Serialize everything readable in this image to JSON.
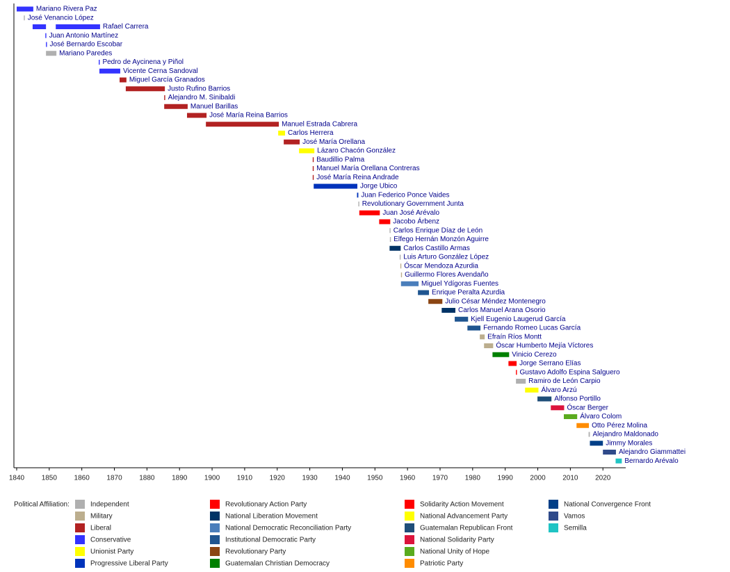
{
  "chart_data": {
    "type": "timeline",
    "xlim": [
      1839.15,
      2027
    ],
    "xticks": [
      1840,
      1850,
      1860,
      1870,
      1880,
      1890,
      1900,
      1910,
      1920,
      1930,
      1940,
      1950,
      1960,
      1970,
      1980,
      1990,
      2000,
      2010,
      2020
    ],
    "legend_title": "Political Affiliation:",
    "parties": [
      {
        "name": "Independent",
        "color": "#b0b0b0"
      },
      {
        "name": "Military",
        "color": "#bcae8e"
      },
      {
        "name": "Liberal",
        "color": "#b22222"
      },
      {
        "name": "Conservative",
        "color": "#3333ff"
      },
      {
        "name": "Unionist Party",
        "color": "#ffff00"
      },
      {
        "name": "Progressive Liberal Party",
        "color": "#0033bb"
      },
      {
        "name": "Revolutionary Action Party",
        "color": "#ff0000"
      },
      {
        "name": "National Liberation Movement",
        "color": "#003366"
      },
      {
        "name": "National Democratic Reconciliation Party",
        "color": "#4a7ebb"
      },
      {
        "name": "Institutional Democratic Party",
        "color": "#1f5590"
      },
      {
        "name": "Revolutionary Party",
        "color": "#8b4513"
      },
      {
        "name": "Guatemalan Christian Democracy",
        "color": "#008000"
      },
      {
        "name": "Solidarity Action Movement",
        "color": "#ff0000"
      },
      {
        "name": "National Advancement Party",
        "color": "#ffff00"
      },
      {
        "name": "Guatemalan Republican Front",
        "color": "#1f4e79"
      },
      {
        "name": "National Solidarity Party",
        "color": "#dc143c"
      },
      {
        "name": "National Unity of Hope",
        "color": "#5aab1e"
      },
      {
        "name": "Patriotic Party",
        "color": "#ff8c00"
      },
      {
        "name": "National Convergence Front",
        "color": "#003f87"
      },
      {
        "name": "Vamos",
        "color": "#2f4a8a"
      },
      {
        "name": "Semilla",
        "color": "#20c4c4"
      }
    ],
    "rows": [
      {
        "name": "Mariano Rivera Paz",
        "color": "#3333ff",
        "spans": [
          [
            1840,
            1845.1
          ]
        ]
      },
      {
        "name": "José Venancio López",
        "color": "#b0b0b0",
        "spans": [
          [
            1842.2,
            1842.5
          ]
        ]
      },
      {
        "name": "Rafael Carrera",
        "color": "#3333ff",
        "spans": [
          [
            1844.9,
            1849
          ],
          [
            1852,
            1865.6
          ]
        ]
      },
      {
        "name": "Juan Antonio Martínez",
        "color": "#3333ff",
        "spans": [
          [
            1848.8,
            1849.1
          ]
        ]
      },
      {
        "name": "José Bernardo Escobar",
        "color": "#3333ff",
        "spans": [
          [
            1849,
            1849.3
          ]
        ]
      },
      {
        "name": "Mariano Paredes",
        "color": "#b0b0b0",
        "spans": [
          [
            1849,
            1852.2
          ]
        ]
      },
      {
        "name": "Pedro de Aycinena y Piñol",
        "color": "#3333ff",
        "spans": [
          [
            1865.2,
            1865.5
          ]
        ]
      },
      {
        "name": "Vicente Cerna Sandoval",
        "color": "#3333ff",
        "spans": [
          [
            1865.4,
            1871.8
          ]
        ]
      },
      {
        "name": "Miguel García Granados",
        "color": "#b22222",
        "spans": [
          [
            1871.6,
            1873.7
          ]
        ]
      },
      {
        "name": "Justo Rufino Barrios",
        "color": "#b22222",
        "spans": [
          [
            1873.5,
            1885.5
          ]
        ]
      },
      {
        "name": "Alejandro M. Sinibaldi",
        "color": "#b22222",
        "spans": [
          [
            1885.3,
            1885.6
          ]
        ]
      },
      {
        "name": "Manuel Barillas",
        "color": "#b22222",
        "spans": [
          [
            1885.3,
            1892.5
          ]
        ]
      },
      {
        "name": "José María Reina Barrios",
        "color": "#b22222",
        "spans": [
          [
            1892.3,
            1898.3
          ]
        ]
      },
      {
        "name": "Manuel Estrada Cabrera",
        "color": "#b22222",
        "spans": [
          [
            1898.1,
            1920.5
          ]
        ]
      },
      {
        "name": "Carlos Herrera",
        "color": "#ffff00",
        "spans": [
          [
            1920.3,
            1922.4
          ]
        ]
      },
      {
        "name": "José María Orellana",
        "color": "#b22222",
        "spans": [
          [
            1922,
            1926.9
          ]
        ]
      },
      {
        "name": "Lázaro Chacón González",
        "color": "#ffff00",
        "spans": [
          [
            1926.7,
            1931.4
          ]
        ]
      },
      {
        "name": "Baudillio Palma",
        "color": "#b22222",
        "spans": [
          [
            1930.9,
            1931.2
          ]
        ]
      },
      {
        "name": "Manuel María Orellana Contreras",
        "color": "#b22222",
        "spans": [
          [
            1930.9,
            1931.2
          ]
        ]
      },
      {
        "name": "José María Reina Andrade",
        "color": "#b22222",
        "spans": [
          [
            1930.9,
            1931.2
          ]
        ]
      },
      {
        "name": "Jorge Ubico",
        "color": "#0033bb",
        "spans": [
          [
            1931.2,
            1944.6
          ]
        ]
      },
      {
        "name": "Juan Federico Ponce Vaides",
        "color": "#0033bb",
        "spans": [
          [
            1944.5,
            1944.9
          ]
        ]
      },
      {
        "name": "Revolutionary Government Junta",
        "color": "#b0b0b0",
        "spans": [
          [
            1944.9,
            1945.2
          ]
        ]
      },
      {
        "name": "Juan José Arévalo",
        "color": "#ff0000",
        "spans": [
          [
            1945.2,
            1951.5
          ]
        ]
      },
      {
        "name": "Jacobo Árbenz",
        "color": "#ff0000",
        "spans": [
          [
            1951.3,
            1954.7
          ]
        ]
      },
      {
        "name": "Carlos Enrique Díaz de León",
        "color": "#b0b0b0",
        "spans": [
          [
            1954.5,
            1954.8
          ]
        ]
      },
      {
        "name": "Elfego Hernán Monzón Aguirre",
        "color": "#b0b0b0",
        "spans": [
          [
            1954.6,
            1954.9
          ]
        ]
      },
      {
        "name": "Carlos Castillo Armas",
        "color": "#003366",
        "spans": [
          [
            1954.5,
            1957.9
          ]
        ]
      },
      {
        "name": "Luis Arturo González López",
        "color": "#b0b0b0",
        "spans": [
          [
            1957.6,
            1957.9
          ]
        ]
      },
      {
        "name": "Óscar Mendoza Azurdia",
        "color": "#bcae8e",
        "spans": [
          [
            1957.8,
            1958.1
          ]
        ]
      },
      {
        "name": "Guillermo Flores Avendaño",
        "color": "#bcae8e",
        "spans": [
          [
            1958,
            1958.3
          ]
        ]
      },
      {
        "name": "Miguel Ydígoras Fuentes",
        "color": "#4a7ebb",
        "spans": [
          [
            1958,
            1963.4
          ]
        ]
      },
      {
        "name": "Enrique Peralta Azurdia",
        "color": "#1f5590",
        "spans": [
          [
            1963.2,
            1966.6
          ]
        ]
      },
      {
        "name": "Julio César Méndez Montenegro",
        "color": "#8b4513",
        "spans": [
          [
            1966.4,
            1970.7
          ]
        ]
      },
      {
        "name": "Carlos Manuel Arana Osorio",
        "color": "#003366",
        "spans": [
          [
            1970.5,
            1974.7
          ]
        ]
      },
      {
        "name": "Kjell Eugenio Laugerud García",
        "color": "#1f5590",
        "spans": [
          [
            1974.5,
            1978.6
          ]
        ]
      },
      {
        "name": "Fernando Romeo Lucas García",
        "color": "#1f5590",
        "spans": [
          [
            1978.4,
            1982.4
          ]
        ]
      },
      {
        "name": "Efraín Ríos Montt",
        "color": "#bcae8e",
        "spans": [
          [
            1982.2,
            1983.7
          ]
        ]
      },
      {
        "name": "Óscar Humberto Mejía Víctores",
        "color": "#bcae8e",
        "spans": [
          [
            1983.5,
            1986.3
          ]
        ]
      },
      {
        "name": "Vinicio Cerezo",
        "color": "#008000",
        "spans": [
          [
            1986.1,
            1991.2
          ]
        ]
      },
      {
        "name": "Jorge Serrano Elías",
        "color": "#ff0000",
        "spans": [
          [
            1991,
            1993.5
          ]
        ]
      },
      {
        "name": "Gustavo Adolfo Espina Salguero",
        "color": "#ff0000",
        "spans": [
          [
            1993.3,
            1993.6
          ]
        ]
      },
      {
        "name": "Ramiro de León Carpio",
        "color": "#b0b0b0",
        "spans": [
          [
            1993.3,
            1996.3
          ]
        ]
      },
      {
        "name": "Álvaro Arzú",
        "color": "#ffff00",
        "spans": [
          [
            1996.1,
            2000.2
          ]
        ]
      },
      {
        "name": "Alfonso Portillo",
        "color": "#1f4e79",
        "spans": [
          [
            1999.9,
            2004.2
          ]
        ]
      },
      {
        "name": "Óscar Berger",
        "color": "#dc143c",
        "spans": [
          [
            2004,
            2008.1
          ]
        ]
      },
      {
        "name": "Álvaro Colom",
        "color": "#5aab1e",
        "spans": [
          [
            2008,
            2012.1
          ]
        ]
      },
      {
        "name": "Otto Pérez Molina",
        "color": "#ff8c00",
        "spans": [
          [
            2011.9,
            2015.7
          ]
        ]
      },
      {
        "name": "Alejandro Maldonado",
        "color": "#b0b0b0",
        "spans": [
          [
            2015.6,
            2016
          ]
        ]
      },
      {
        "name": "Jimmy Morales",
        "color": "#003f87",
        "spans": [
          [
            2016,
            2020
          ]
        ]
      },
      {
        "name": "Alejandro Giammattei",
        "color": "#2f4a8a",
        "spans": [
          [
            2020,
            2024
          ]
        ]
      },
      {
        "name": "Bernardo Arévalo",
        "color": "#20c4c4",
        "spans": [
          [
            2023.9,
            2025.8
          ]
        ]
      }
    ]
  }
}
